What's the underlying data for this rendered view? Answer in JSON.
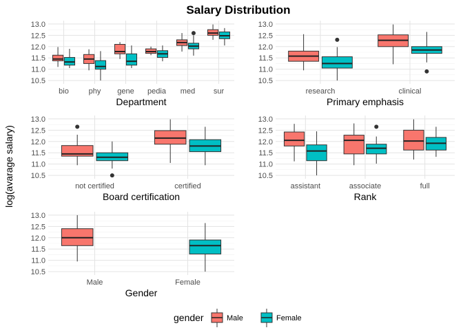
{
  "title": "Salary Distribution",
  "ylabel": "log(avarage salary)",
  "legend": {
    "title": "gender",
    "position": "bottom",
    "entries": [
      {
        "label": "Male",
        "color": "#F8766D"
      },
      {
        "label": "Female",
        "color": "#00BFC4"
      }
    ]
  },
  "chart_data": [
    {
      "type": "boxplot",
      "xlabel": "Department",
      "ylim": [
        10.5,
        13.0
      ],
      "yticks": [
        10.5,
        11.0,
        11.5,
        12.0,
        12.5,
        13.0
      ],
      "grid": true,
      "categories": [
        "bio",
        "phy",
        "gene",
        "pedia",
        "med",
        "sur"
      ],
      "series": [
        {
          "name": "Male",
          "boxes": [
            {
              "min": 11.1,
              "q1": 11.37,
              "median": 11.45,
              "q3": 11.62,
              "max": 11.98,
              "outliers": []
            },
            {
              "min": 10.95,
              "q1": 11.25,
              "median": 11.45,
              "q3": 11.65,
              "max": 11.88,
              "outliers": []
            },
            {
              "min": 11.45,
              "q1": 11.68,
              "median": 11.78,
              "q3": 12.1,
              "max": 12.2,
              "outliers": []
            },
            {
              "min": 11.62,
              "q1": 11.7,
              "median": 11.78,
              "q3": 11.9,
              "max": 12.0,
              "outliers": []
            },
            {
              "min": 11.78,
              "q1": 12.05,
              "median": 12.18,
              "q3": 12.3,
              "max": 12.6,
              "outliers": []
            },
            {
              "min": 12.3,
              "q1": 12.5,
              "median": 12.6,
              "q3": 12.75,
              "max": 12.98,
              "outliers": []
            }
          ]
        },
        {
          "name": "Female",
          "boxes": [
            {
              "min": 11.05,
              "q1": 11.18,
              "median": 11.32,
              "q3": 11.52,
              "max": 11.9,
              "outliers": []
            },
            {
              "min": 10.5,
              "q1": 11.0,
              "median": 11.12,
              "q3": 11.38,
              "max": 11.8,
              "outliers": []
            },
            {
              "min": 11.05,
              "q1": 11.18,
              "median": 11.35,
              "q3": 11.68,
              "max": 12.05,
              "outliers": []
            },
            {
              "min": 11.35,
              "q1": 11.52,
              "median": 11.68,
              "q3": 11.82,
              "max": 12.05,
              "outliers": []
            },
            {
              "min": 11.6,
              "q1": 11.9,
              "median": 12.02,
              "q3": 12.15,
              "max": 12.5,
              "outliers": [
                12.6
              ]
            },
            {
              "min": 12.05,
              "q1": 12.35,
              "median": 12.48,
              "q3": 12.65,
              "max": 12.82,
              "outliers": []
            }
          ]
        }
      ]
    },
    {
      "type": "boxplot",
      "xlabel": "Primary emphasis",
      "ylim": [
        10.5,
        13.0
      ],
      "yticks": [
        10.5,
        11.0,
        11.5,
        12.0,
        12.5,
        13.0
      ],
      "grid": true,
      "categories": [
        "research",
        "clinical"
      ],
      "series": [
        {
          "name": "Male",
          "boxes": [
            {
              "min": 10.95,
              "q1": 11.35,
              "median": 11.58,
              "q3": 11.8,
              "max": 12.55,
              "outliers": []
            },
            {
              "min": 11.22,
              "q1": 12.0,
              "median": 12.28,
              "q3": 12.52,
              "max": 12.98,
              "outliers": []
            }
          ]
        },
        {
          "name": "Female",
          "boxes": [
            {
              "min": 10.5,
              "q1": 11.05,
              "median": 11.25,
              "q3": 11.55,
              "max": 11.98,
              "outliers": [
                12.3
              ]
            },
            {
              "min": 11.3,
              "q1": 11.7,
              "median": 11.85,
              "q3": 12.0,
              "max": 12.65,
              "outliers": [
                10.9
              ]
            }
          ]
        }
      ]
    },
    {
      "type": "boxplot",
      "xlabel": "Board certification",
      "ylim": [
        10.5,
        13.0
      ],
      "yticks": [
        10.5,
        11.0,
        11.5,
        12.0,
        12.5,
        13.0
      ],
      "grid": true,
      "categories": [
        "not certified",
        "certified"
      ],
      "series": [
        {
          "name": "Male",
          "boxes": [
            {
              "min": 10.95,
              "q1": 11.35,
              "median": 11.45,
              "q3": 11.82,
              "max": 12.3,
              "outliers": [
                12.65
              ]
            },
            {
              "min": 11.05,
              "q1": 11.88,
              "median": 12.15,
              "q3": 12.48,
              "max": 12.98,
              "outliers": []
            }
          ]
        },
        {
          "name": "Female",
          "boxes": [
            {
              "min": 10.8,
              "q1": 11.15,
              "median": 11.3,
              "q3": 11.5,
              "max": 12.0,
              "outliers": [
                10.5
              ]
            },
            {
              "min": 10.95,
              "q1": 11.55,
              "median": 11.8,
              "q3": 12.08,
              "max": 12.65,
              "outliers": []
            }
          ]
        }
      ]
    },
    {
      "type": "boxplot",
      "xlabel": "Rank",
      "ylim": [
        10.5,
        13.0
      ],
      "yticks": [
        10.5,
        11.0,
        11.5,
        12.0,
        12.5,
        13.0
      ],
      "grid": true,
      "categories": [
        "assistant",
        "associate",
        "full"
      ],
      "series": [
        {
          "name": "Male",
          "boxes": [
            {
              "min": 11.12,
              "q1": 11.8,
              "median": 12.05,
              "q3": 12.42,
              "max": 12.78,
              "outliers": []
            },
            {
              "min": 10.95,
              "q1": 11.45,
              "median": 12.05,
              "q3": 12.28,
              "max": 12.8,
              "outliers": []
            },
            {
              "min": 11.2,
              "q1": 11.62,
              "median": 12.02,
              "q3": 12.5,
              "max": 12.98,
              "outliers": []
            }
          ]
        },
        {
          "name": "Female",
          "boxes": [
            {
              "min": 10.5,
              "q1": 11.15,
              "median": 11.58,
              "q3": 11.85,
              "max": 12.45,
              "outliers": []
            },
            {
              "min": 11.02,
              "q1": 11.45,
              "median": 11.7,
              "q3": 11.88,
              "max": 12.22,
              "outliers": [
                12.65
              ]
            },
            {
              "min": 11.32,
              "q1": 11.62,
              "median": 11.92,
              "q3": 12.18,
              "max": 12.65,
              "outliers": []
            }
          ]
        }
      ]
    },
    {
      "type": "boxplot",
      "xlabel": "Gender",
      "ylim": [
        10.5,
        13.0
      ],
      "yticks": [
        10.5,
        11.0,
        11.5,
        12.0,
        12.5,
        13.0
      ],
      "grid": true,
      "categories": [
        "Male",
        "Female"
      ],
      "series": [
        {
          "name": "Male",
          "boxes": [
            {
              "min": 10.95,
              "q1": 11.65,
              "median": 12.0,
              "q3": 12.4,
              "max": 13.0,
              "outliers": []
            },
            null
          ]
        },
        {
          "name": "Female",
          "boxes": [
            null,
            {
              "min": 10.5,
              "q1": 11.28,
              "median": 11.65,
              "q3": 11.9,
              "max": 12.65,
              "outliers": []
            }
          ]
        }
      ]
    }
  ]
}
